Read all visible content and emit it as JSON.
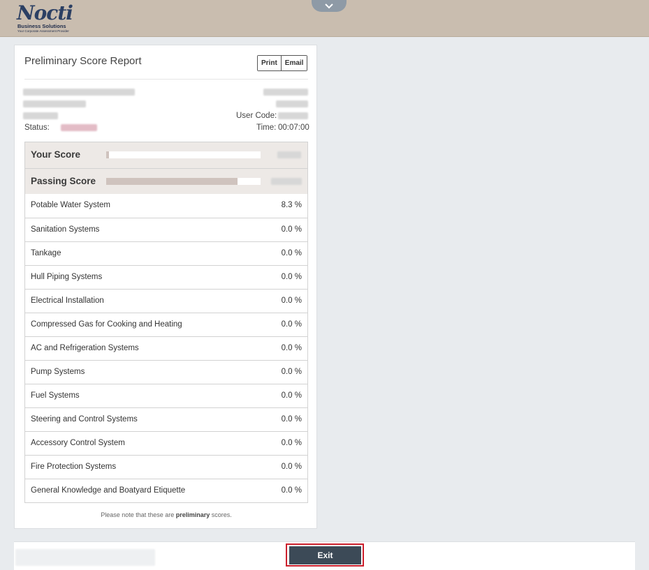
{
  "header": {
    "logo_script": "Nocti",
    "logo_company": "Business Solutions",
    "logo_tagline": "Your Corporate Assessment Provider",
    "collapse_icon": "chevron-down-icon"
  },
  "report": {
    "title": "Preliminary Score Report",
    "print_label": "Print",
    "email_label": "Email",
    "status_label": "Status:",
    "user_code_label": "User Code:",
    "time_label": "Time:",
    "time_value": "00:07:00"
  },
  "scores": {
    "your_score_label": "Your Score",
    "passing_score_label": "Passing Score",
    "your_score_fraction": 0.02,
    "passing_score_fraction": 0.85
  },
  "categories": [
    {
      "name": "Potable Water System",
      "percent": "8.3 %"
    },
    {
      "name": "Sanitation Systems",
      "percent": "0.0 %"
    },
    {
      "name": "Tankage",
      "percent": "0.0 %"
    },
    {
      "name": "Hull Piping Systems",
      "percent": "0.0 %"
    },
    {
      "name": "Electrical Installation",
      "percent": "0.0 %"
    },
    {
      "name": "Compressed Gas for Cooking and Heating",
      "percent": "0.0 %"
    },
    {
      "name": "AC and Refrigeration Systems",
      "percent": "0.0 %"
    },
    {
      "name": "Pump Systems",
      "percent": "0.0 %"
    },
    {
      "name": "Fuel Systems",
      "percent": "0.0 %"
    },
    {
      "name": "Steering and Control Systems",
      "percent": "0.0 %"
    },
    {
      "name": "Accessory Control System",
      "percent": "0.0 %"
    },
    {
      "name": "Fire Protection Systems",
      "percent": "0.0 %"
    },
    {
      "name": "General Knowledge and Boatyard Etiquette",
      "percent": "0.0 %"
    }
  ],
  "note": {
    "prefix": "Please note that these are ",
    "bold": "preliminary",
    "suffix": " scores."
  },
  "footer": {
    "exit_label": "Exit"
  },
  "colors": {
    "accent": "#3c4a57",
    "header_bg": "#c9bdaf",
    "highlight": "#cc1f2c"
  }
}
